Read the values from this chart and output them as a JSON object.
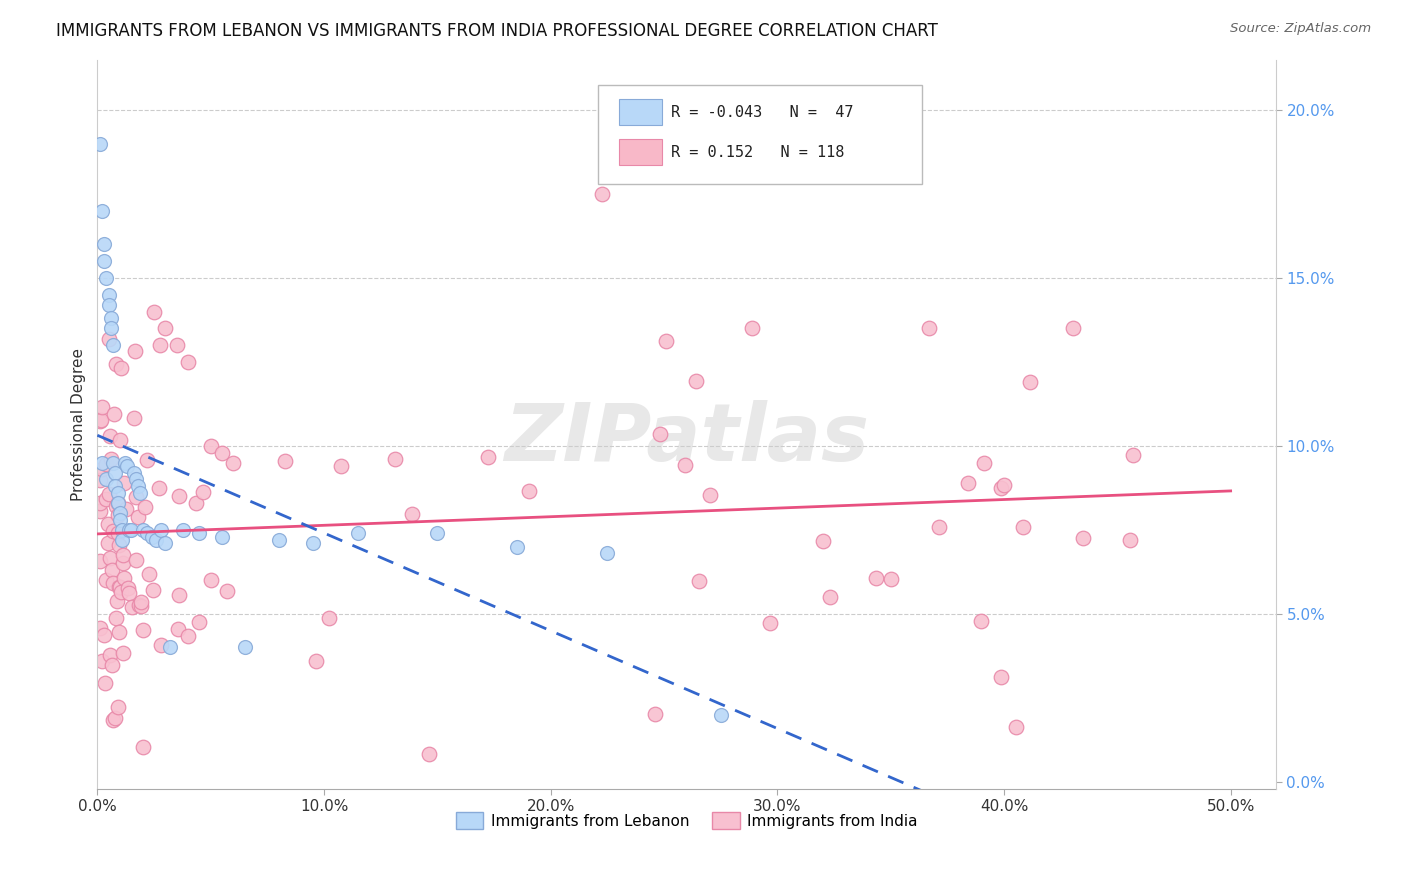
{
  "title": "IMMIGRANTS FROM LEBANON VS IMMIGRANTS FROM INDIA PROFESSIONAL DEGREE CORRELATION CHART",
  "source": "Source: ZipAtlas.com",
  "ylabel": "Professional Degree",
  "xlim": [
    0.0,
    0.52
  ],
  "ylim": [
    -0.002,
    0.215
  ],
  "xtick_vals": [
    0.0,
    0.1,
    0.2,
    0.3,
    0.4,
    0.5
  ],
  "ytick_vals": [
    0.05,
    0.1,
    0.15,
    0.2
  ],
  "legend_entries": [
    {
      "label_r": "R = ",
      "r_val": "-0.043",
      "label_n": "  N = ",
      "n_val": " 47",
      "color": "#b8d8f8",
      "edge": "#88aad8"
    },
    {
      "label_r": "R =  ",
      "r_val": "0.152",
      "label_n": "  N = ",
      "n_val": "118",
      "color": "#f8b8c8",
      "edge": "#e888a8"
    }
  ],
  "series": [
    {
      "name": "Immigrants from Lebanon",
      "color": "#b8d8f8",
      "edge_color": "#88aad8",
      "trend_color": "#3366cc",
      "trend_style": "dashed",
      "R": -0.043,
      "N": 47
    },
    {
      "name": "Immigrants from India",
      "color": "#f8c0d0",
      "edge_color": "#e888a8",
      "trend_color": "#e85080",
      "trend_style": "solid",
      "R": 0.152,
      "N": 118
    }
  ],
  "watermark": "ZIPatlas",
  "background_color": "#ffffff",
  "grid_color": "#cccccc",
  "right_tick_color": "#5599ee"
}
